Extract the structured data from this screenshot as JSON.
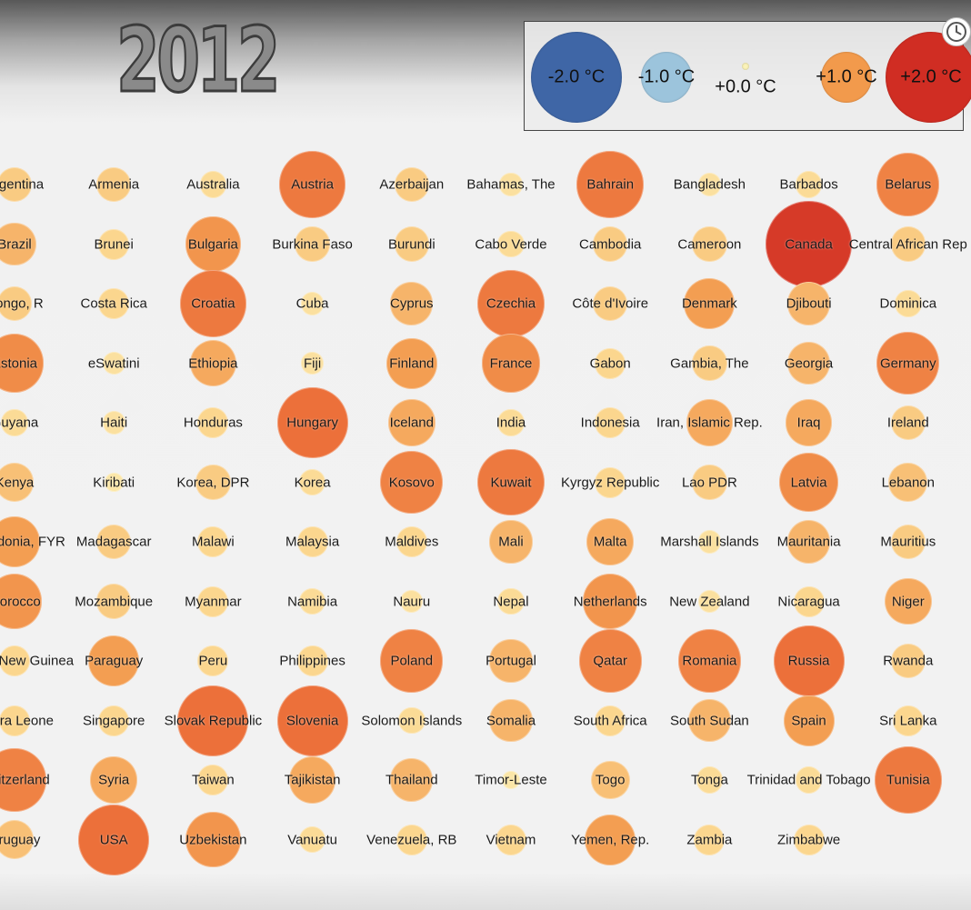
{
  "year": "2012",
  "legend": {
    "items": [
      {
        "label": "-2.0 °C",
        "value": -2.0,
        "color": "#3f66a6"
      },
      {
        "label": "-1.0 °C",
        "value": -1.0,
        "color": "#9cc4dc"
      },
      {
        "label": "+0.0 °C",
        "value": 0.0,
        "color": "#fbf3b8"
      },
      {
        "label": "+1.0 °C",
        "value": 1.0,
        "color": "#f29a4c"
      },
      {
        "label": "+2.0 °C",
        "value": 2.0,
        "color": "#d02d23"
      }
    ]
  },
  "controls": {
    "clock_icon": "clock-icon"
  },
  "chart_data": {
    "type": "bubble-grid",
    "title": "2012",
    "value_unit": "°C",
    "scale": [
      -2.0,
      2.0
    ],
    "countries": [
      [
        "Argentina",
        0.6
      ],
      [
        "Armenia",
        0.6
      ],
      [
        "Australia",
        0.4
      ],
      [
        "Austria",
        1.4
      ],
      [
        "Azerbaijan",
        0.6
      ],
      [
        "Bahamas, The",
        0.3
      ],
      [
        "Bahrain",
        1.4
      ],
      [
        "Bangladesh",
        0.3
      ],
      [
        "Barbados",
        0.4
      ],
      [
        "Belarus",
        1.3
      ],
      [
        "Brazil",
        0.8
      ],
      [
        "Brunei",
        0.5
      ],
      [
        "Bulgaria",
        1.1
      ],
      [
        "Burkina Faso",
        0.6
      ],
      [
        "Burundi",
        0.6
      ],
      [
        "Cabo Verde",
        0.4
      ],
      [
        "Cambodia",
        0.6
      ],
      [
        "Cameroon",
        0.6
      ],
      [
        "Canada",
        1.9
      ],
      [
        "Central African Rep",
        0.6
      ],
      [
        "Congo, R",
        0.6
      ],
      [
        "Costa Rica",
        0.5
      ],
      [
        "Croatia",
        1.4
      ],
      [
        "Cuba",
        0.3
      ],
      [
        "Cyprus",
        0.8
      ],
      [
        "Czechia",
        1.4
      ],
      [
        "Côte d'Ivoire",
        0.6
      ],
      [
        "Denmark",
        1.0
      ],
      [
        "Djibouti",
        0.8
      ],
      [
        "Dominica",
        0.4
      ],
      [
        "Estonia",
        1.2
      ],
      [
        "eSwatini",
        0.3
      ],
      [
        "Ethiopia",
        0.9
      ],
      [
        "Fiji",
        0.3
      ],
      [
        "Finland",
        1.0
      ],
      [
        "France",
        1.2
      ],
      [
        "Gabon",
        0.5
      ],
      [
        "Gambia, The",
        0.6
      ],
      [
        "Georgia",
        0.8
      ],
      [
        "Germany",
        1.3
      ],
      [
        "Guyana",
        0.4
      ],
      [
        "Haiti",
        0.3
      ],
      [
        "Honduras",
        0.5
      ],
      [
        "Hungary",
        1.5
      ],
      [
        "Iceland",
        0.9
      ],
      [
        "India",
        0.4
      ],
      [
        "Indonesia",
        0.5
      ],
      [
        "Iran, Islamic Rep.",
        0.9
      ],
      [
        "Iraq",
        0.9
      ],
      [
        "Ireland",
        0.6
      ],
      [
        "Kenya",
        0.7
      ],
      [
        "Kiribati",
        0.2
      ],
      [
        "Korea, DPR",
        0.6
      ],
      [
        "Korea",
        0.4
      ],
      [
        "Kosovo",
        1.3
      ],
      [
        "Kuwait",
        1.4
      ],
      [
        "Kyrgyz Republic",
        0.5
      ],
      [
        "Lao PDR",
        0.6
      ],
      [
        "Latvia",
        1.2
      ],
      [
        "Lebanon",
        0.7
      ],
      [
        "Macedonia, FYR",
        1.0
      ],
      [
        "Madagascar",
        0.6
      ],
      [
        "Malawi",
        0.5
      ],
      [
        "Malaysia",
        0.5
      ],
      [
        "Maldives",
        0.5
      ],
      [
        "Mali",
        0.8
      ],
      [
        "Malta",
        0.9
      ],
      [
        "Marshall Islands",
        0.3
      ],
      [
        "Mauritania",
        0.8
      ],
      [
        "Mauritius",
        0.6
      ],
      [
        "Morocco",
        1.1
      ],
      [
        "Mozambique",
        0.6
      ],
      [
        "Myanmar",
        0.5
      ],
      [
        "Namibia",
        0.4
      ],
      [
        "Nauru",
        0.3
      ],
      [
        "Nepal",
        0.4
      ],
      [
        "Netherlands",
        1.1
      ],
      [
        "New Zealand",
        0.3
      ],
      [
        "Nicaragua",
        0.5
      ],
      [
        "Niger",
        0.9
      ],
      [
        "Papua New Guinea",
        0.5
      ],
      [
        "Paraguay",
        1.0
      ],
      [
        "Peru",
        0.5
      ],
      [
        "Philippines",
        0.5
      ],
      [
        "Poland",
        1.3
      ],
      [
        "Portugal",
        0.8
      ],
      [
        "Qatar",
        1.3
      ],
      [
        "Romania",
        1.3
      ],
      [
        "Russia",
        1.5
      ],
      [
        "Rwanda",
        0.6
      ],
      [
        "Sierra Leone",
        0.5
      ],
      [
        "Singapore",
        0.5
      ],
      [
        "Slovak Republic",
        1.5
      ],
      [
        "Slovenia",
        1.5
      ],
      [
        "Solomon Islands",
        0.4
      ],
      [
        "Somalia",
        0.8
      ],
      [
        "South Africa",
        0.5
      ],
      [
        "South Sudan",
        0.8
      ],
      [
        "Spain",
        1.0
      ],
      [
        "Sri Lanka",
        0.5
      ],
      [
        "Switzerland",
        1.3
      ],
      [
        "Syria",
        0.9
      ],
      [
        "Taiwan",
        0.5
      ],
      [
        "Tajikistan",
        0.9
      ],
      [
        "Thailand",
        0.8
      ],
      [
        "Timor-Leste",
        0.2
      ],
      [
        "Togo",
        0.7
      ],
      [
        "Tonga",
        0.4
      ],
      [
        "Trinidad and Tobago",
        0.4
      ],
      [
        "Tunisia",
        1.4
      ],
      [
        "Uruguay",
        0.7
      ],
      [
        "USA",
        1.5
      ],
      [
        "Uzbekistan",
        1.1
      ],
      [
        "Vanuatu",
        0.4
      ],
      [
        "Venezuela, RB",
        0.5
      ],
      [
        "Vietnam",
        0.5
      ],
      [
        "Yemen, Rep.",
        1.0
      ],
      [
        "Zambia",
        0.5
      ],
      [
        "Zimbabwe",
        0.5
      ]
    ]
  }
}
